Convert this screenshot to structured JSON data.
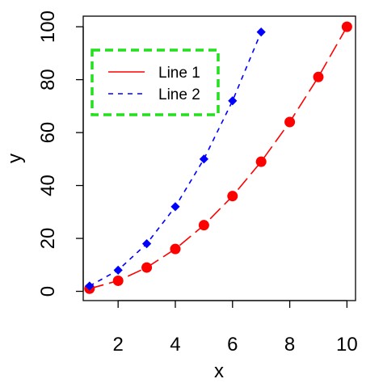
{
  "chart_data": {
    "type": "line",
    "xlabel": "x",
    "ylabel": "y",
    "xlim": [
      0.78,
      10.3
    ],
    "ylim": [
      -3.5,
      104
    ],
    "xticks": [
      2,
      4,
      6,
      8,
      10
    ],
    "yticks": [
      0,
      20,
      40,
      60,
      80,
      100
    ],
    "grid": false,
    "legend_position": "top-left",
    "legend_box_style": "dashed",
    "legend_box_color": "#22e01b",
    "series": [
      {
        "name": "Line 1",
        "color": "#ff0000",
        "line_style": "longdash",
        "marker": "circle",
        "x": [
          1,
          2,
          3,
          4,
          5,
          6,
          7,
          8,
          9,
          10
        ],
        "y": [
          1,
          4,
          9,
          16,
          25,
          36,
          49,
          64,
          81,
          100
        ]
      },
      {
        "name": "Line 2",
        "color": "#0000ff",
        "line_style": "dashed",
        "marker": "diamond",
        "x": [
          1,
          2,
          3,
          4,
          5,
          6,
          7
        ],
        "y": [
          2,
          8,
          18,
          32,
          50,
          72,
          98
        ]
      }
    ],
    "legend": [
      {
        "label": "Line 1",
        "color": "#ff0000",
        "line_style": "solid"
      },
      {
        "label": "Line 2",
        "color": "#0000ff",
        "line_style": "dashed"
      }
    ]
  }
}
